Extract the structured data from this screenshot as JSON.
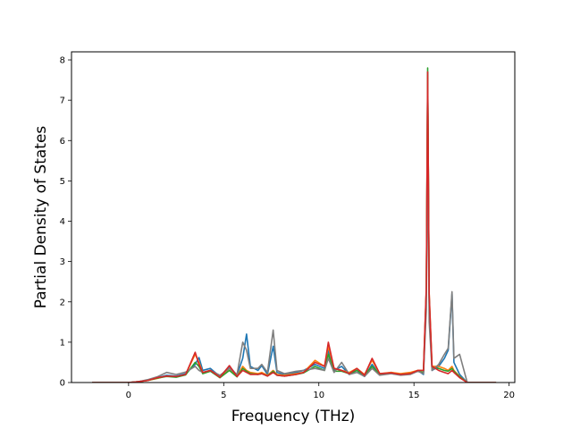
{
  "chart_data": {
    "type": "line",
    "title": "",
    "xlabel": "Frequency (THz)",
    "ylabel": "Partial Density of States",
    "xlim": [
      -3.0,
      20.3
    ],
    "ylim": [
      0,
      8.2
    ],
    "xticks": [
      0,
      5,
      10,
      15,
      20
    ],
    "yticks": [
      0,
      1,
      2,
      3,
      4,
      5,
      6,
      7,
      8
    ],
    "grid": false,
    "legend": "none",
    "series": [
      {
        "color": "#1f77b4",
        "points": [
          [
            -1.9,
            0
          ],
          [
            0,
            0
          ],
          [
            0.5,
            0.02
          ],
          [
            1.0,
            0.06
          ],
          [
            1.5,
            0.12
          ],
          [
            2.0,
            0.18
          ],
          [
            2.5,
            0.16
          ],
          [
            3.0,
            0.22
          ],
          [
            3.5,
            0.45
          ],
          [
            3.7,
            0.62
          ],
          [
            3.9,
            0.3
          ],
          [
            4.3,
            0.35
          ],
          [
            4.8,
            0.15
          ],
          [
            5.3,
            0.4
          ],
          [
            5.7,
            0.18
          ],
          [
            6.0,
            0.6
          ],
          [
            6.2,
            1.2
          ],
          [
            6.4,
            0.4
          ],
          [
            6.8,
            0.3
          ],
          [
            7.0,
            0.42
          ],
          [
            7.3,
            0.2
          ],
          [
            7.6,
            0.9
          ],
          [
            7.8,
            0.25
          ],
          [
            8.2,
            0.2
          ],
          [
            8.8,
            0.25
          ],
          [
            9.2,
            0.3
          ],
          [
            9.8,
            0.45
          ],
          [
            10.3,
            0.35
          ],
          [
            10.5,
            0.8
          ],
          [
            10.8,
            0.3
          ],
          [
            11.2,
            0.4
          ],
          [
            11.6,
            0.2
          ],
          [
            12.0,
            0.3
          ],
          [
            12.4,
            0.15
          ],
          [
            12.8,
            0.45
          ],
          [
            13.2,
            0.2
          ],
          [
            13.8,
            0.25
          ],
          [
            14.3,
            0.2
          ],
          [
            14.8,
            0.22
          ],
          [
            15.2,
            0.3
          ],
          [
            15.5,
            0.2
          ],
          [
            15.65,
            2.2
          ],
          [
            15.72,
            7.7
          ],
          [
            15.8,
            2.0
          ],
          [
            15.95,
            0.3
          ],
          [
            16.3,
            0.4
          ],
          [
            16.6,
            0.6
          ],
          [
            16.8,
            0.8
          ],
          [
            17.0,
            2.2
          ],
          [
            17.1,
            0.5
          ],
          [
            17.4,
            0.2
          ],
          [
            17.8,
            0
          ],
          [
            19.3,
            0
          ]
        ]
      },
      {
        "color": "#ff7f0e",
        "points": [
          [
            -1.9,
            0
          ],
          [
            0,
            0
          ],
          [
            0.5,
            0.02
          ],
          [
            1.0,
            0.05
          ],
          [
            1.5,
            0.1
          ],
          [
            2.0,
            0.16
          ],
          [
            2.5,
            0.14
          ],
          [
            3.0,
            0.2
          ],
          [
            3.5,
            0.7
          ],
          [
            3.7,
            0.5
          ],
          [
            3.9,
            0.25
          ],
          [
            4.3,
            0.3
          ],
          [
            4.8,
            0.12
          ],
          [
            5.3,
            0.35
          ],
          [
            5.7,
            0.15
          ],
          [
            6.0,
            0.4
          ],
          [
            6.2,
            0.3
          ],
          [
            6.4,
            0.25
          ],
          [
            6.8,
            0.22
          ],
          [
            7.0,
            0.25
          ],
          [
            7.3,
            0.18
          ],
          [
            7.6,
            0.3
          ],
          [
            7.8,
            0.2
          ],
          [
            8.2,
            0.18
          ],
          [
            8.8,
            0.22
          ],
          [
            9.2,
            0.25
          ],
          [
            9.8,
            0.55
          ],
          [
            10.3,
            0.4
          ],
          [
            10.5,
            0.9
          ],
          [
            10.8,
            0.35
          ],
          [
            11.2,
            0.3
          ],
          [
            11.6,
            0.25
          ],
          [
            12.0,
            0.35
          ],
          [
            12.4,
            0.2
          ],
          [
            12.8,
            0.55
          ],
          [
            13.2,
            0.22
          ],
          [
            13.8,
            0.25
          ],
          [
            14.3,
            0.22
          ],
          [
            14.8,
            0.25
          ],
          [
            15.2,
            0.3
          ],
          [
            15.5,
            0.3
          ],
          [
            15.65,
            2.3
          ],
          [
            15.72,
            7.6
          ],
          [
            15.8,
            2.2
          ],
          [
            15.95,
            0.4
          ],
          [
            16.3,
            0.4
          ],
          [
            16.6,
            0.35
          ],
          [
            16.8,
            0.3
          ],
          [
            17.0,
            0.4
          ],
          [
            17.1,
            0.3
          ],
          [
            17.4,
            0.15
          ],
          [
            17.8,
            0
          ],
          [
            19.3,
            0
          ]
        ]
      },
      {
        "color": "#2ca02c",
        "points": [
          [
            -1.9,
            0
          ],
          [
            0,
            0
          ],
          [
            0.5,
            0.02
          ],
          [
            1.0,
            0.05
          ],
          [
            1.5,
            0.11
          ],
          [
            2.0,
            0.15
          ],
          [
            2.5,
            0.13
          ],
          [
            3.0,
            0.19
          ],
          [
            3.5,
            0.5
          ],
          [
            3.7,
            0.4
          ],
          [
            3.9,
            0.22
          ],
          [
            4.3,
            0.28
          ],
          [
            4.8,
            0.12
          ],
          [
            5.3,
            0.3
          ],
          [
            5.7,
            0.14
          ],
          [
            6.0,
            0.35
          ],
          [
            6.2,
            0.28
          ],
          [
            6.4,
            0.22
          ],
          [
            6.8,
            0.2
          ],
          [
            7.0,
            0.22
          ],
          [
            7.3,
            0.16
          ],
          [
            7.6,
            0.28
          ],
          [
            7.8,
            0.18
          ],
          [
            8.2,
            0.16
          ],
          [
            8.8,
            0.2
          ],
          [
            9.2,
            0.24
          ],
          [
            9.8,
            0.4
          ],
          [
            10.3,
            0.3
          ],
          [
            10.5,
            0.7
          ],
          [
            10.8,
            0.28
          ],
          [
            11.2,
            0.28
          ],
          [
            11.6,
            0.22
          ],
          [
            12.0,
            0.3
          ],
          [
            12.4,
            0.18
          ],
          [
            12.8,
            0.4
          ],
          [
            13.2,
            0.2
          ],
          [
            13.8,
            0.22
          ],
          [
            14.3,
            0.2
          ],
          [
            14.8,
            0.22
          ],
          [
            15.2,
            0.28
          ],
          [
            15.5,
            0.25
          ],
          [
            15.65,
            2.3
          ],
          [
            15.72,
            7.8
          ],
          [
            15.8,
            2.1
          ],
          [
            15.95,
            0.35
          ],
          [
            16.3,
            0.35
          ],
          [
            16.6,
            0.3
          ],
          [
            16.8,
            0.28
          ],
          [
            17.0,
            0.35
          ],
          [
            17.1,
            0.28
          ],
          [
            17.4,
            0.14
          ],
          [
            17.8,
            0
          ],
          [
            19.3,
            0
          ]
        ]
      },
      {
        "color": "#7f7f7f",
        "points": [
          [
            -1.9,
            0
          ],
          [
            0,
            0
          ],
          [
            0.5,
            0.02
          ],
          [
            1.0,
            0.07
          ],
          [
            1.5,
            0.14
          ],
          [
            2.0,
            0.25
          ],
          [
            2.5,
            0.2
          ],
          [
            3.0,
            0.26
          ],
          [
            3.5,
            0.4
          ],
          [
            3.7,
            0.3
          ],
          [
            3.9,
            0.25
          ],
          [
            4.3,
            0.3
          ],
          [
            4.8,
            0.18
          ],
          [
            5.3,
            0.35
          ],
          [
            5.7,
            0.2
          ],
          [
            6.0,
            1.0
          ],
          [
            6.2,
            0.8
          ],
          [
            6.4,
            0.35
          ],
          [
            6.8,
            0.35
          ],
          [
            7.0,
            0.45
          ],
          [
            7.3,
            0.25
          ],
          [
            7.6,
            1.3
          ],
          [
            7.8,
            0.3
          ],
          [
            8.2,
            0.22
          ],
          [
            8.8,
            0.28
          ],
          [
            9.2,
            0.3
          ],
          [
            9.8,
            0.35
          ],
          [
            10.3,
            0.3
          ],
          [
            10.5,
            0.6
          ],
          [
            10.8,
            0.25
          ],
          [
            11.2,
            0.5
          ],
          [
            11.6,
            0.2
          ],
          [
            12.0,
            0.25
          ],
          [
            12.4,
            0.15
          ],
          [
            12.8,
            0.35
          ],
          [
            13.2,
            0.18
          ],
          [
            13.8,
            0.22
          ],
          [
            14.3,
            0.18
          ],
          [
            14.8,
            0.2
          ],
          [
            15.2,
            0.28
          ],
          [
            15.5,
            0.22
          ],
          [
            15.65,
            1.8
          ],
          [
            15.72,
            5.8
          ],
          [
            15.8,
            1.5
          ],
          [
            15.95,
            0.3
          ],
          [
            16.3,
            0.45
          ],
          [
            16.6,
            0.7
          ],
          [
            16.8,
            0.85
          ],
          [
            17.0,
            2.25
          ],
          [
            17.1,
            0.6
          ],
          [
            17.4,
            0.7
          ],
          [
            17.8,
            0
          ],
          [
            19.3,
            0
          ]
        ]
      },
      {
        "color": "#d62728",
        "points": [
          [
            -1.9,
            0
          ],
          [
            0,
            0
          ],
          [
            0.5,
            0.02
          ],
          [
            1.0,
            0.05
          ],
          [
            1.5,
            0.12
          ],
          [
            2.0,
            0.16
          ],
          [
            2.5,
            0.15
          ],
          [
            3.0,
            0.2
          ],
          [
            3.5,
            0.75
          ],
          [
            3.7,
            0.45
          ],
          [
            3.9,
            0.25
          ],
          [
            4.3,
            0.3
          ],
          [
            4.8,
            0.13
          ],
          [
            5.3,
            0.42
          ],
          [
            5.7,
            0.15
          ],
          [
            6.0,
            0.3
          ],
          [
            6.2,
            0.25
          ],
          [
            6.4,
            0.2
          ],
          [
            6.8,
            0.2
          ],
          [
            7.0,
            0.22
          ],
          [
            7.3,
            0.16
          ],
          [
            7.6,
            0.25
          ],
          [
            7.8,
            0.18
          ],
          [
            8.2,
            0.16
          ],
          [
            8.8,
            0.2
          ],
          [
            9.2,
            0.25
          ],
          [
            9.8,
            0.5
          ],
          [
            10.3,
            0.4
          ],
          [
            10.5,
            1.0
          ],
          [
            10.8,
            0.35
          ],
          [
            11.2,
            0.3
          ],
          [
            11.6,
            0.22
          ],
          [
            12.0,
            0.35
          ],
          [
            12.4,
            0.18
          ],
          [
            12.8,
            0.6
          ],
          [
            13.2,
            0.22
          ],
          [
            13.8,
            0.24
          ],
          [
            14.3,
            0.2
          ],
          [
            14.8,
            0.22
          ],
          [
            15.2,
            0.3
          ],
          [
            15.5,
            0.3
          ],
          [
            15.65,
            2.4
          ],
          [
            15.72,
            7.7
          ],
          [
            15.8,
            2.2
          ],
          [
            15.95,
            0.4
          ],
          [
            16.3,
            0.3
          ],
          [
            16.6,
            0.25
          ],
          [
            16.8,
            0.22
          ],
          [
            17.0,
            0.3
          ],
          [
            17.1,
            0.25
          ],
          [
            17.4,
            0.12
          ],
          [
            17.8,
            0
          ],
          [
            19.3,
            0
          ]
        ]
      }
    ]
  }
}
